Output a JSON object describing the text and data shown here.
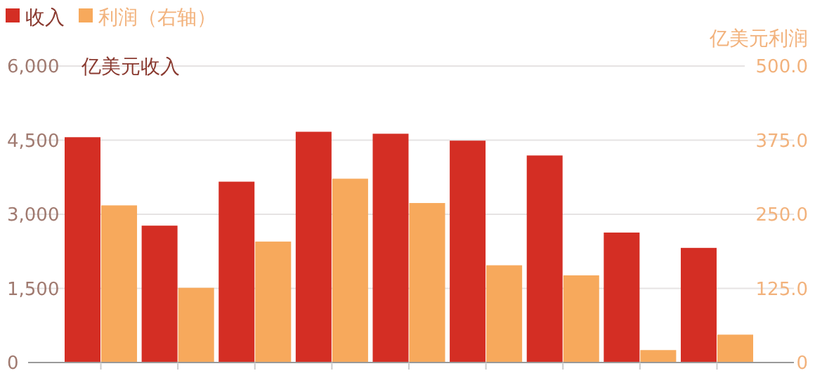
{
  "chart_data": {
    "type": "bar",
    "categories": [
      null,
      null,
      null,
      null,
      null,
      null,
      null,
      null,
      null
    ],
    "series": [
      {
        "name": "收入",
        "color": "#d42e24",
        "values": [
          4560,
          2770,
          3660,
          4670,
          4630,
          4490,
          4190,
          2630,
          2320
        ]
      },
      {
        "name": "利润（右轴）",
        "color": "#f7a95c",
        "axis": "y2",
        "values": [
          265,
          126,
          204,
          310,
          269,
          164,
          147,
          21,
          47
        ]
      }
    ],
    "ylabel": "亿美元收入",
    "y2label": "亿美元利润",
    "ylim": [
      0,
      6000
    ],
    "yticks": [
      0,
      {
        "value": 1500,
        "label": "1,500"
      },
      {
        "value": 3000,
        "label": "3,000"
      },
      {
        "value": 4500,
        "label": "4,500"
      },
      {
        "value": 6000,
        "label": "6,000"
      }
    ],
    "y2lim": [
      0,
      500
    ],
    "y2ticks": [
      0,
      {
        "value": 125,
        "label": "125.0"
      },
      {
        "value": 250,
        "label": "250.0"
      },
      {
        "value": 375,
        "label": "375.0"
      },
      {
        "value": 500,
        "label": "500.0"
      }
    ],
    "grid": "y",
    "legend": "top left"
  }
}
